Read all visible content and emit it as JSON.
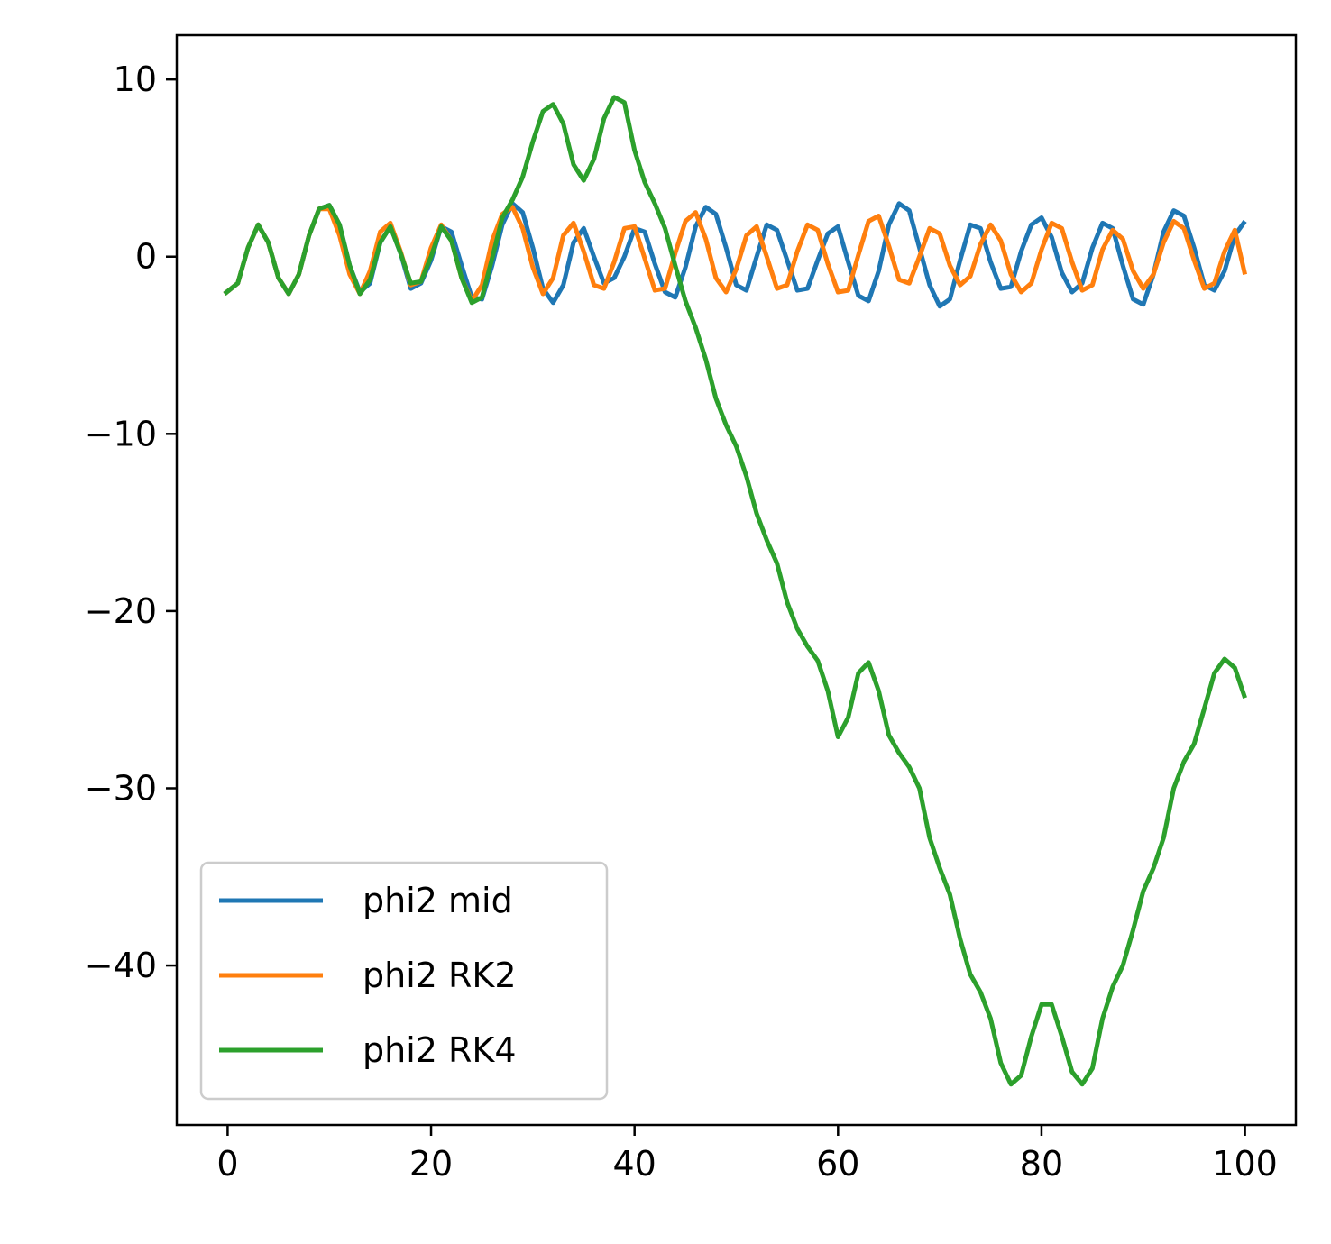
{
  "chart_data": {
    "type": "line",
    "title": "",
    "xlabel": "",
    "ylabel": "",
    "xlim": [
      -5,
      105
    ],
    "ylim": [
      -49,
      12.5
    ],
    "xticks": [
      0,
      20,
      40,
      60,
      80,
      100
    ],
    "yticks": [
      10,
      0,
      -10,
      -20,
      -30,
      -40
    ],
    "xtick_labels": [
      "0",
      "20",
      "40",
      "60",
      "80",
      "100"
    ],
    "ytick_labels": [
      "10",
      "0",
      "−10",
      "−20",
      "−30",
      "−40"
    ],
    "grid": false,
    "legend_position": "bottom-left",
    "series": [
      {
        "name": "phi2 mid",
        "color": "#1f77b4",
        "points": [
          [
            -0.3,
            -2.1
          ],
          [
            1,
            -1.5
          ],
          [
            2,
            0.5
          ],
          [
            3,
            1.8
          ],
          [
            4,
            0.8
          ],
          [
            5,
            -1.2
          ],
          [
            6,
            -2.1
          ],
          [
            7,
            -1
          ],
          [
            8,
            1.2
          ],
          [
            9,
            2.7
          ],
          [
            10,
            2.9
          ],
          [
            11,
            1.8
          ],
          [
            12,
            -0.5
          ],
          [
            13,
            -2
          ],
          [
            14,
            -1.5
          ],
          [
            15,
            0.8
          ],
          [
            16,
            1.7
          ],
          [
            17,
            0.2
          ],
          [
            18,
            -1.8
          ],
          [
            19,
            -1.5
          ],
          [
            20,
            -0.2
          ],
          [
            21,
            1.7
          ],
          [
            22,
            1.4
          ],
          [
            23,
            -0.5
          ],
          [
            24,
            -2.3
          ],
          [
            25,
            -2.4
          ],
          [
            26,
            -0.5
          ],
          [
            27,
            1.8
          ],
          [
            28,
            3
          ],
          [
            29,
            2.5
          ],
          [
            30,
            0.5
          ],
          [
            31,
            -1.8
          ],
          [
            32,
            -2.6
          ],
          [
            33,
            -1.6
          ],
          [
            34,
            0.8
          ],
          [
            35,
            1.6
          ],
          [
            36,
            0
          ],
          [
            37,
            -1.5
          ],
          [
            38,
            -1.2
          ],
          [
            39,
            0
          ],
          [
            40,
            1.6
          ],
          [
            41,
            1.4
          ],
          [
            42,
            -0.4
          ],
          [
            43,
            -2
          ],
          [
            44,
            -2.3
          ],
          [
            45,
            -0.6
          ],
          [
            46,
            1.7
          ],
          [
            47,
            2.8
          ],
          [
            48,
            2.4
          ],
          [
            49,
            0.5
          ],
          [
            50,
            -1.6
          ],
          [
            51,
            -1.9
          ],
          [
            52,
            0
          ],
          [
            53,
            1.8
          ],
          [
            54,
            1.5
          ],
          [
            55,
            -0.2
          ],
          [
            56,
            -1.9
          ],
          [
            57,
            -1.8
          ],
          [
            58,
            -0.2
          ],
          [
            59,
            1.3
          ],
          [
            60,
            1.7
          ],
          [
            61,
            -0.3
          ],
          [
            62,
            -2.2
          ],
          [
            63,
            -2.5
          ],
          [
            64,
            -0.8
          ],
          [
            65,
            1.8
          ],
          [
            66,
            3
          ],
          [
            67,
            2.6
          ],
          [
            68,
            0.5
          ],
          [
            69,
            -1.6
          ],
          [
            70,
            -2.8
          ],
          [
            71,
            -2.4
          ],
          [
            72,
            -0.2
          ],
          [
            73,
            1.8
          ],
          [
            74,
            1.6
          ],
          [
            75,
            -0.3
          ],
          [
            76,
            -1.8
          ],
          [
            77,
            -1.7
          ],
          [
            78,
            0.3
          ],
          [
            79,
            1.8
          ],
          [
            80,
            2.2
          ],
          [
            81,
            1.1
          ],
          [
            82,
            -0.9
          ],
          [
            83,
            -2
          ],
          [
            84,
            -1.5
          ],
          [
            85,
            0.5
          ],
          [
            86,
            1.9
          ],
          [
            87,
            1.6
          ],
          [
            88,
            -0.5
          ],
          [
            89,
            -2.4
          ],
          [
            90,
            -2.7
          ],
          [
            91,
            -1
          ],
          [
            92,
            1.4
          ],
          [
            93,
            2.6
          ],
          [
            94,
            2.3
          ],
          [
            95,
            0.5
          ],
          [
            96,
            -1.6
          ],
          [
            97,
            -1.9
          ],
          [
            98,
            -0.8
          ],
          [
            99,
            1.2
          ],
          [
            100,
            2
          ]
        ]
      },
      {
        "name": "phi2 RK2",
        "color": "#ff7f0e",
        "points": [
          [
            -0.3,
            -2.1
          ],
          [
            1,
            -1.5
          ],
          [
            2,
            0.5
          ],
          [
            3,
            1.8
          ],
          [
            4,
            0.8
          ],
          [
            5,
            -1.2
          ],
          [
            6,
            -2.1
          ],
          [
            7,
            -1
          ],
          [
            8,
            1.2
          ],
          [
            9,
            2.7
          ],
          [
            10,
            2.7
          ],
          [
            11,
            1.2
          ],
          [
            12,
            -1
          ],
          [
            13,
            -2.1
          ],
          [
            14,
            -0.8
          ],
          [
            15,
            1.4
          ],
          [
            16,
            1.9
          ],
          [
            17,
            0.3
          ],
          [
            18,
            -1.6
          ],
          [
            19,
            -1.4
          ],
          [
            20,
            0.5
          ],
          [
            21,
            1.8
          ],
          [
            22,
            0.9
          ],
          [
            23,
            -1.2
          ],
          [
            24,
            -2.5
          ],
          [
            25,
            -1.6
          ],
          [
            26,
            0.9
          ],
          [
            27,
            2.4
          ],
          [
            28,
            2.8
          ],
          [
            29,
            1.6
          ],
          [
            30,
            -0.6
          ],
          [
            31,
            -2.1
          ],
          [
            32,
            -1.2
          ],
          [
            33,
            1.2
          ],
          [
            34,
            1.9
          ],
          [
            35,
            0.3
          ],
          [
            36,
            -1.6
          ],
          [
            37,
            -1.8
          ],
          [
            38,
            -0.3
          ],
          [
            39,
            1.6
          ],
          [
            40,
            1.7
          ],
          [
            41,
            -0.1
          ],
          [
            42,
            -1.9
          ],
          [
            43,
            -1.8
          ],
          [
            44,
            0.2
          ],
          [
            45,
            2
          ],
          [
            46,
            2.5
          ],
          [
            47,
            1
          ],
          [
            48,
            -1.2
          ],
          [
            49,
            -2
          ],
          [
            50,
            -0.7
          ],
          [
            51,
            1.2
          ],
          [
            52,
            1.7
          ],
          [
            53,
            0
          ],
          [
            54,
            -1.8
          ],
          [
            55,
            -1.6
          ],
          [
            56,
            0.3
          ],
          [
            57,
            1.8
          ],
          [
            58,
            1.5
          ],
          [
            59,
            -0.4
          ],
          [
            60,
            -2
          ],
          [
            61,
            -1.9
          ],
          [
            62,
            0.1
          ],
          [
            63,
            2
          ],
          [
            64,
            2.3
          ],
          [
            65,
            0.6
          ],
          [
            66,
            -1.3
          ],
          [
            67,
            -1.5
          ],
          [
            68,
            0
          ],
          [
            69,
            1.6
          ],
          [
            70,
            1.3
          ],
          [
            71,
            -0.5
          ],
          [
            72,
            -1.6
          ],
          [
            73,
            -1.1
          ],
          [
            74,
            0.7
          ],
          [
            75,
            1.8
          ],
          [
            76,
            0.9
          ],
          [
            77,
            -1
          ],
          [
            78,
            -2
          ],
          [
            79,
            -1.5
          ],
          [
            80,
            0.4
          ],
          [
            81,
            1.9
          ],
          [
            82,
            1.6
          ],
          [
            83,
            -0.3
          ],
          [
            84,
            -1.9
          ],
          [
            85,
            -1.6
          ],
          [
            86,
            0.4
          ],
          [
            87,
            1.5
          ],
          [
            88,
            1
          ],
          [
            89,
            -0.8
          ],
          [
            90,
            -1.8
          ],
          [
            91,
            -1
          ],
          [
            92,
            0.8
          ],
          [
            93,
            2
          ],
          [
            94,
            1.6
          ],
          [
            95,
            -0.2
          ],
          [
            96,
            -1.8
          ],
          [
            97,
            -1.5
          ],
          [
            98,
            0.3
          ],
          [
            99,
            1.5
          ],
          [
            100,
            -1
          ]
        ]
      },
      {
        "name": "phi2 RK4",
        "color": "#2ca02c",
        "points": [
          [
            -0.3,
            -2.1
          ],
          [
            1,
            -1.5
          ],
          [
            2,
            0.5
          ],
          [
            3,
            1.8
          ],
          [
            4,
            0.8
          ],
          [
            5,
            -1.2
          ],
          [
            6,
            -2.1
          ],
          [
            7,
            -1
          ],
          [
            8,
            1.2
          ],
          [
            9,
            2.7
          ],
          [
            10,
            2.9
          ],
          [
            11,
            1.8
          ],
          [
            12,
            -0.5
          ],
          [
            13,
            -2.1
          ],
          [
            14,
            -1.3
          ],
          [
            15,
            0.8
          ],
          [
            16,
            1.7
          ],
          [
            17,
            0.2
          ],
          [
            18,
            -1.5
          ],
          [
            19,
            -1.4
          ],
          [
            20,
            0
          ],
          [
            21,
            1.7
          ],
          [
            22,
            0.9
          ],
          [
            23,
            -1.2
          ],
          [
            24,
            -2.6
          ],
          [
            25,
            -2.3
          ],
          [
            26,
            -0.1
          ],
          [
            27,
            2.2
          ],
          [
            28,
            3.2
          ],
          [
            29,
            4.5
          ],
          [
            30,
            6.5
          ],
          [
            31,
            8.2
          ],
          [
            32,
            8.6
          ],
          [
            33,
            7.5
          ],
          [
            34,
            5.2
          ],
          [
            35,
            4.3
          ],
          [
            36,
            5.5
          ],
          [
            37,
            7.8
          ],
          [
            38,
            9
          ],
          [
            39,
            8.7
          ],
          [
            40,
            6
          ],
          [
            41,
            4.2
          ],
          [
            42,
            3
          ],
          [
            43,
            1.6
          ],
          [
            44,
            -0.5
          ],
          [
            45,
            -2.5
          ],
          [
            46,
            -4
          ],
          [
            47,
            -5.8
          ],
          [
            48,
            -8
          ],
          [
            49,
            -9.5
          ],
          [
            50,
            -10.7
          ],
          [
            51,
            -12.4
          ],
          [
            52,
            -14.5
          ],
          [
            53,
            -16
          ],
          [
            54,
            -17.3
          ],
          [
            55,
            -19.5
          ],
          [
            56,
            -21
          ],
          [
            57,
            -22
          ],
          [
            58,
            -22.8
          ],
          [
            59,
            -24.5
          ],
          [
            60,
            -27.1
          ],
          [
            61,
            -26
          ],
          [
            62,
            -23.5
          ],
          [
            63,
            -22.9
          ],
          [
            64,
            -24.5
          ],
          [
            65,
            -27
          ],
          [
            66,
            -28
          ],
          [
            67,
            -28.8
          ],
          [
            68,
            -30
          ],
          [
            69,
            -32.8
          ],
          [
            70,
            -34.5
          ],
          [
            71,
            -36
          ],
          [
            72,
            -38.5
          ],
          [
            73,
            -40.5
          ],
          [
            74,
            -41.5
          ],
          [
            75,
            -43
          ],
          [
            76,
            -45.5
          ],
          [
            77,
            -46.7
          ],
          [
            78,
            -46.2
          ],
          [
            79,
            -44
          ],
          [
            80,
            -42.2
          ],
          [
            81,
            -42.2
          ],
          [
            82,
            -44
          ],
          [
            83,
            -46
          ],
          [
            84,
            -46.7
          ],
          [
            85,
            -45.8
          ],
          [
            86,
            -43
          ],
          [
            87,
            -41.2
          ],
          [
            88,
            -40
          ],
          [
            89,
            -38
          ],
          [
            90,
            -35.8
          ],
          [
            91,
            -34.5
          ],
          [
            92,
            -32.8
          ],
          [
            93,
            -30
          ],
          [
            94,
            -28.5
          ],
          [
            95,
            -27.5
          ],
          [
            96,
            -25.5
          ],
          [
            97,
            -23.5
          ],
          [
            98,
            -22.7
          ],
          [
            99,
            -23.2
          ],
          [
            100,
            -24.9
          ]
        ]
      }
    ]
  }
}
